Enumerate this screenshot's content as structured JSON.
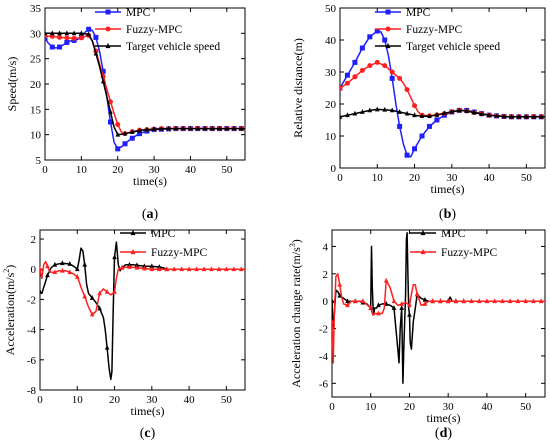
{
  "colors": {
    "mpc": "#1f1fff",
    "fuzzy": "#ff1f1f",
    "target": "#000000",
    "accel_mpc": "#000000",
    "accel_fuzzy": "#ff1f1f",
    "jerk_mpc": "#000000",
    "jerk_fuzzy": "#ff1f1f"
  },
  "chart_data": [
    {
      "type": "line",
      "caption_letter": "a",
      "xlabel": "time(s)",
      "ylabel": "Speed(m/s)",
      "xlim": [
        0,
        55
      ],
      "ylim": [
        5,
        35
      ],
      "xticks": [
        0,
        10,
        20,
        30,
        40,
        50
      ],
      "yticks": [
        5,
        10,
        15,
        20,
        25,
        30,
        35
      ],
      "legend": "top-right",
      "series": [
        {
          "name": "MPC",
          "color_key": "mpc",
          "marker": "square",
          "x": [
            0,
            1,
            2,
            3,
            4,
            5,
            6,
            7,
            8,
            9,
            10,
            11,
            12,
            13,
            14,
            15,
            16,
            17,
            18,
            19,
            20,
            21,
            22,
            23,
            24,
            25,
            26,
            28,
            30,
            33,
            36,
            40,
            45,
            50,
            55
          ],
          "y": [
            29,
            28,
            27.3,
            27.1,
            27.3,
            27.7,
            28.2,
            28.5,
            28.6,
            28.8,
            29.3,
            30.2,
            30.8,
            30.6,
            29.2,
            26.5,
            22.5,
            17.5,
            12.5,
            8.5,
            7.2,
            7.6,
            8.2,
            8.8,
            9.3,
            9.8,
            10.2,
            10.7,
            11,
            11.1,
            11.2,
            11.2,
            11.2,
            11.2,
            11.2
          ],
          "marker_x": [
            0,
            2,
            4,
            6,
            8,
            10,
            12,
            14,
            16,
            18,
            20,
            22,
            24,
            26,
            28,
            30,
            32,
            34,
            36,
            38,
            40,
            42,
            44,
            46,
            48,
            50,
            52,
            54
          ]
        },
        {
          "name": "Fuzzy-MPC",
          "color_key": "fuzzy",
          "marker": "circle",
          "x": [
            0,
            2,
            4,
            6,
            8,
            10,
            11,
            12,
            13,
            14,
            15,
            16,
            17,
            18,
            19,
            20,
            21,
            22,
            24,
            26,
            28,
            30,
            33,
            36,
            40,
            45,
            50,
            55
          ],
          "y": [
            29.5,
            29.4,
            29.2,
            29.1,
            29.0,
            29.1,
            29.4,
            29.6,
            28.5,
            26.5,
            24,
            21.5,
            19,
            16.5,
            14.2,
            12,
            10.5,
            10.2,
            10.6,
            10.9,
            11,
            11.1,
            11.2,
            11.2,
            11.2,
            11.2,
            11.2,
            11.2
          ],
          "marker_x": [
            0,
            2,
            4,
            6,
            8,
            10,
            12,
            14,
            16,
            18,
            20,
            22,
            24,
            26,
            28,
            30,
            32,
            34,
            36,
            38,
            40,
            42,
            44,
            46,
            48,
            50,
            52,
            54
          ]
        },
        {
          "name": "Target vehicle speed",
          "color_key": "target",
          "marker": "triangle",
          "x": [
            0,
            2,
            4,
            6,
            8,
            10,
            12,
            13,
            14,
            15,
            16,
            17,
            18,
            19,
            20,
            22,
            24,
            26,
            28,
            30,
            33,
            36,
            40,
            45,
            50,
            55
          ],
          "y": [
            30,
            30,
            30,
            30,
            30,
            30,
            29.8,
            28.5,
            26,
            23.5,
            20.5,
            17.5,
            14.5,
            11.5,
            10,
            10.2,
            10.5,
            10.8,
            11,
            11.1,
            11.2,
            11.2,
            11.2,
            11.2,
            11.2,
            11.2
          ],
          "marker_x": [
            0,
            2,
            4,
            6,
            8,
            10,
            12,
            14,
            16,
            18,
            20,
            22,
            24,
            26,
            28,
            30,
            32,
            34,
            36,
            38,
            40,
            42,
            44,
            46,
            48,
            50,
            52,
            54
          ]
        }
      ]
    },
    {
      "type": "line",
      "caption_letter": "b",
      "xlabel": "time(s)",
      "ylabel": "Relative distance(m)",
      "xlim": [
        0,
        55
      ],
      "ylim": [
        0,
        50
      ],
      "xticks": [
        0,
        10,
        20,
        30,
        40,
        50
      ],
      "yticks": [
        0,
        10,
        20,
        30,
        40,
        50
      ],
      "legend": "top-right",
      "series": [
        {
          "name": "MPC",
          "color_key": "mpc",
          "marker": "square",
          "x": [
            0,
            2,
            4,
            6,
            8,
            10,
            11,
            12,
            13,
            14,
            15,
            16,
            17,
            18,
            19,
            20,
            22,
            24,
            26,
            28,
            30,
            32,
            34,
            36,
            40,
            45,
            50,
            55
          ],
          "y": [
            25,
            29,
            33,
            37.5,
            41,
            42.8,
            42.5,
            40,
            35,
            28,
            20,
            13,
            7.5,
            4,
            3.5,
            6,
            10,
            13,
            15,
            16.5,
            17.5,
            18,
            18,
            17.5,
            16.5,
            16,
            16,
            16
          ],
          "marker_x": [
            0,
            2,
            4,
            6,
            8,
            10,
            12,
            14,
            16,
            18,
            20,
            22,
            24,
            26,
            28,
            30,
            32,
            34,
            36,
            38,
            40,
            42,
            44,
            46,
            48,
            50,
            52,
            54
          ]
        },
        {
          "name": "Fuzzy-MPC",
          "color_key": "fuzzy",
          "marker": "circle",
          "x": [
            0,
            2,
            4,
            6,
            8,
            10,
            12,
            14,
            16,
            17,
            18,
            19,
            20,
            21,
            22,
            24,
            26,
            28,
            30,
            32,
            34,
            36,
            40,
            45,
            50,
            55
          ],
          "y": [
            25,
            26.5,
            28.5,
            30.5,
            32,
            33,
            32,
            30,
            28,
            26.5,
            24.5,
            22,
            19.5,
            17.5,
            16.5,
            16.3,
            16.6,
            17,
            17.5,
            18,
            17.8,
            17.3,
            16.5,
            16,
            16,
            16
          ],
          "marker_x": [
            0,
            2,
            4,
            6,
            8,
            10,
            12,
            14,
            16,
            18,
            20,
            22,
            24,
            26,
            28,
            30,
            32,
            34,
            36,
            38,
            40,
            42,
            44,
            46,
            48,
            50,
            52,
            54
          ]
        },
        {
          "name": "Target vehicle speed",
          "color_key": "target",
          "marker": "triangle",
          "x": [
            0,
            2,
            4,
            6,
            8,
            10,
            12,
            14,
            16,
            18,
            20,
            22,
            24,
            26,
            28,
            30,
            32,
            34,
            36,
            40,
            45,
            50,
            55
          ],
          "y": [
            16,
            16.5,
            17,
            17.5,
            18,
            18.3,
            18.2,
            18,
            17.5,
            17,
            16.5,
            16.2,
            16.2,
            16.6,
            17.1,
            17.6,
            18,
            17.8,
            17.3,
            16.5,
            16,
            16,
            16
          ],
          "marker_x": [
            0,
            2,
            4,
            6,
            8,
            10,
            12,
            14,
            16,
            18,
            20,
            22,
            24,
            26,
            28,
            30,
            32,
            34,
            36,
            38,
            40,
            42,
            44,
            46,
            48,
            50,
            52,
            54
          ]
        }
      ]
    },
    {
      "type": "line",
      "caption_letter": "c",
      "xlabel": "time(s)",
      "ylabel": "Acceleration(m/s",
      "ylabel_sup": "2",
      "ylabel_end": ")",
      "xlim": [
        0,
        55
      ],
      "ylim": [
        -8,
        2.6
      ],
      "xticks": [
        0,
        10,
        20,
        30,
        40,
        50
      ],
      "yticks": [
        -8,
        -6,
        -4,
        -2,
        0,
        2
      ],
      "legend": "top-right",
      "series": [
        {
          "name": "MPC",
          "color_key": "accel_mpc",
          "marker": "triangle",
          "x": [
            0,
            0.5,
            1,
            2,
            3,
            4,
            6,
            8,
            9,
            10,
            10.5,
            11,
            11.5,
            12,
            12.5,
            13,
            14,
            15,
            16,
            17,
            17.5,
            18,
            18.5,
            19,
            19.3,
            19.6,
            20,
            20.5,
            21,
            21.5,
            22,
            22.5,
            23,
            25,
            28,
            30,
            32,
            33,
            34,
            35,
            36,
            38,
            40,
            45,
            50,
            55
          ],
          "y": [
            -1.5,
            -1.6,
            -1.2,
            -0.4,
            0.1,
            0.3,
            0.4,
            0.35,
            0.2,
            0,
            0.6,
            1.4,
            1.2,
            0.3,
            -1,
            -1.6,
            -1.9,
            -2.2,
            -2.6,
            -3.2,
            -4,
            -5.2,
            -6.5,
            -7.3,
            -6.8,
            -3,
            0.8,
            1.8,
            0.3,
            -0.1,
            0.1,
            0.2,
            0.3,
            0.3,
            0.2,
            0.2,
            0.15,
            0.1,
            0,
            0,
            0,
            0,
            0,
            0,
            0,
            0
          ],
          "marker_x": [
            0,
            2,
            4,
            6,
            8,
            10,
            12,
            14,
            16,
            18,
            20,
            22,
            24,
            26,
            28,
            30,
            32,
            34
          ]
        },
        {
          "name": "Fuzzy-MPC",
          "color_key": "accel_fuzzy",
          "marker": "triangle",
          "x": [
            0,
            0.5,
            1,
            1.5,
            2,
            2.5,
            3,
            4,
            5,
            6,
            7,
            8,
            9,
            10,
            10.5,
            11,
            12,
            13,
            14,
            15,
            15.5,
            16,
            17,
            18,
            19,
            19.5,
            20,
            20.5,
            21,
            22,
            24,
            26,
            28,
            30,
            32,
            34,
            36,
            38,
            40,
            45,
            50,
            55
          ],
          "y": [
            0,
            -0.6,
            0.3,
            0.5,
            0.2,
            -0.1,
            -0.2,
            -0.2,
            -0.1,
            -0.1,
            -0.1,
            -0.2,
            -0.3,
            -0.5,
            -0.8,
            -1.2,
            -1.8,
            -2.5,
            -3,
            -2.8,
            -2.2,
            -1.6,
            -1.3,
            -1.5,
            -1.7,
            -1.6,
            -1.5,
            -0.6,
            0,
            0.1,
            0.15,
            0.1,
            0.05,
            0,
            0,
            0,
            0,
            0,
            0,
            0,
            0,
            0
          ],
          "marker_x": [
            0,
            2,
            4,
            6,
            8,
            10,
            12,
            14,
            16,
            18,
            20,
            22,
            24,
            26,
            28,
            30,
            32,
            34,
            36,
            38,
            40,
            42,
            44,
            46,
            48,
            50,
            52,
            54
          ]
        }
      ]
    },
    {
      "type": "line",
      "caption_letter": "d",
      "xlabel": "time(s)",
      "ylabel": "Acceleration change rate(m/s",
      "ylabel_sup": "3",
      "ylabel_end": ")",
      "xlim": [
        0,
        55
      ],
      "ylim": [
        -7,
        5.2
      ],
      "xticks": [
        0,
        10,
        20,
        30,
        40,
        50
      ],
      "yticks": [
        -6,
        -4,
        -2,
        0,
        2,
        4
      ],
      "legend": "top-right",
      "series": [
        {
          "name": "MPC",
          "color_key": "jerk_mpc",
          "marker": "triangle",
          "x": [
            0,
            0.3,
            0.6,
            1,
            1.5,
            2,
            3,
            4,
            5,
            6,
            7,
            8,
            9,
            10,
            10.2,
            10.4,
            10.6,
            10.8,
            11,
            11.5,
            12,
            13,
            14,
            15,
            16,
            16.5,
            17,
            17.3,
            17.6,
            18,
            18.3,
            18.6,
            19,
            19.2,
            19.4,
            19.6,
            19.8,
            20,
            20.2,
            20.5,
            21,
            21.5,
            22,
            23,
            25,
            28,
            30,
            30.5,
            31,
            32,
            35,
            40,
            45,
            50,
            55
          ],
          "y": [
            0,
            -2,
            -1,
            0.8,
            0.7,
            0.4,
            0.2,
            0,
            0,
            0,
            0,
            -0.1,
            -0.2,
            -0.5,
            4,
            1,
            -0.5,
            -1,
            -0.5,
            -0.5,
            -0.3,
            -0.2,
            -0.2,
            -0.3,
            -0.5,
            -2,
            -3.5,
            -4.5,
            -2,
            -0.5,
            -6,
            -3,
            0.5,
            4.5,
            5,
            2,
            -0.5,
            -1,
            -3,
            -3.5,
            -1.5,
            -0.5,
            0.5,
            0.2,
            0,
            0,
            0,
            0.3,
            0,
            0,
            0,
            0,
            0,
            0,
            0
          ],
          "marker_x": [
            0,
            2,
            4,
            6,
            8,
            10,
            12,
            14,
            16,
            18,
            20,
            22,
            24,
            26,
            28,
            30,
            32,
            34
          ]
        },
        {
          "name": "Fuzzy-MPC",
          "color_key": "jerk_fuzzy",
          "marker": "triangle",
          "x": [
            0,
            0.3,
            0.6,
            1,
            1.5,
            2,
            2.5,
            3,
            4,
            5,
            6,
            8,
            10,
            10.5,
            11,
            12,
            13,
            13.5,
            14,
            15,
            16,
            17,
            18,
            19,
            20,
            20.5,
            21,
            21.5,
            22,
            23,
            24,
            25,
            26,
            28,
            30,
            35,
            40,
            45,
            50,
            55
          ],
          "y": [
            -1.5,
            -4.5,
            -1,
            1.8,
            2,
            1.2,
            0.3,
            -0.2,
            -0.3,
            0,
            0,
            0,
            -0.5,
            -1,
            -0.9,
            -0.9,
            -0.9,
            -0.5,
            1.5,
            1,
            0,
            -0.3,
            -0.2,
            -0.1,
            -0.3,
            0.5,
            1.2,
            1.2,
            0.5,
            -0.3,
            -0.2,
            0,
            0,
            0,
            0,
            0,
            0,
            0,
            0,
            0
          ],
          "marker_x": [
            0,
            2,
            4,
            6,
            8,
            10,
            12,
            14,
            16,
            18,
            20,
            22,
            24,
            26,
            28,
            30,
            32,
            34,
            36,
            38,
            40,
            42,
            44,
            46,
            48,
            50,
            52,
            54
          ]
        }
      ]
    }
  ]
}
